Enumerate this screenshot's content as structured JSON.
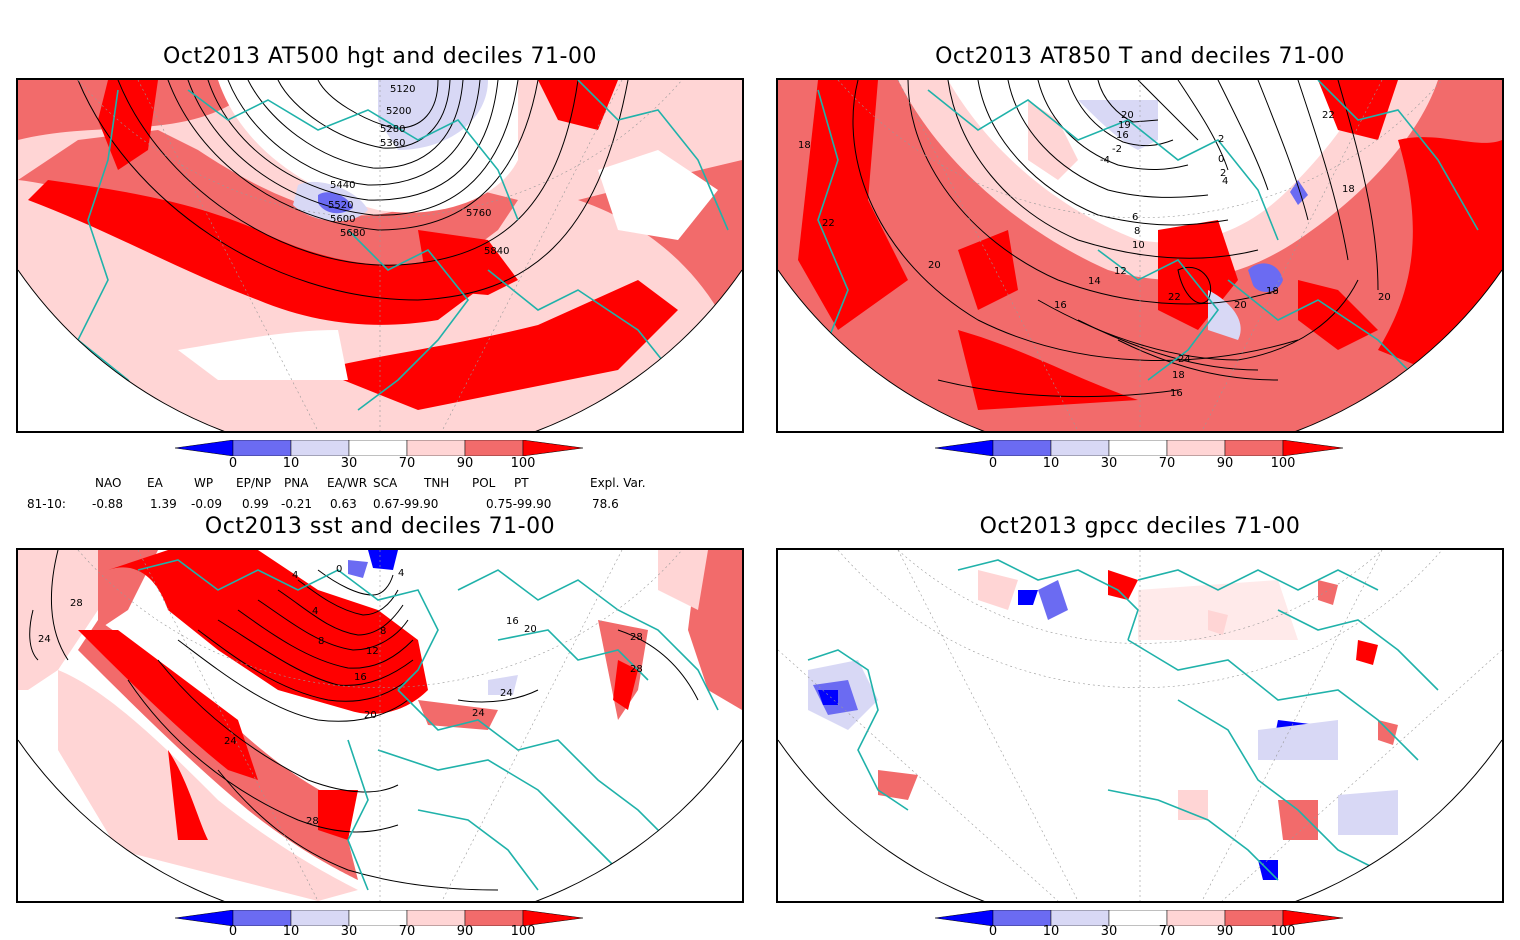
{
  "panels": [
    {
      "title": "Oct2013 AT500 hgt and deciles 71-00",
      "contour_labels": [
        "5120",
        "5200",
        "5280",
        "5360",
        "5440",
        "5520",
        "5600",
        "5680",
        "5760",
        "5840"
      ]
    },
    {
      "title": "Oct2013 AT850 T and deciles 71-00",
      "contour_labels": [
        "20",
        "19",
        "16",
        "2",
        "-2",
        "-4",
        "0",
        "2",
        "4",
        "6",
        "8",
        "10",
        "12",
        "14",
        "16",
        "18",
        "20",
        "22",
        "24",
        "18",
        "16",
        "18",
        "22",
        "20",
        "18",
        "22",
        "20"
      ]
    },
    {
      "title": "Oct2013 sst and deciles 71-00",
      "contour_labels": [
        "28",
        "24",
        "4",
        "0",
        "4",
        "4",
        "8",
        "8",
        "12",
        "16",
        "20",
        "24",
        "28",
        "28",
        "16",
        "20",
        "24",
        "24",
        "28"
      ]
    },
    {
      "title": "Oct2013 gpcc deciles 71-00",
      "contour_labels": []
    }
  ],
  "colorbar": {
    "ticks": [
      "0",
      "10",
      "30",
      "70",
      "90",
      "100"
    ],
    "colors": {
      "c0": "#0000ff",
      "c1": "#6b6bf2",
      "c2": "#d8d8f5",
      "c3": "#ffffff",
      "c4": "#ffd5d5",
      "c5": "#f26b6b",
      "c6": "#ff0000"
    }
  },
  "indices": {
    "headers": [
      "NAO",
      "EA",
      "WP",
      "EP/NP",
      "PNA",
      "EA/WR",
      "SCA",
      "TNH",
      "POL",
      "PT",
      "Expl. Var."
    ],
    "row_label": "81-10:",
    "values": [
      "-0.88",
      "1.39",
      "-0.09",
      "0.99",
      "-0.21",
      "0.63",
      "0.67-99.90",
      "",
      "0.75-99.90",
      "",
      "78.6"
    ]
  },
  "colors": {
    "coast": "#20b2aa",
    "border": "#000000",
    "line": "#000000",
    "grid": "#999999"
  }
}
